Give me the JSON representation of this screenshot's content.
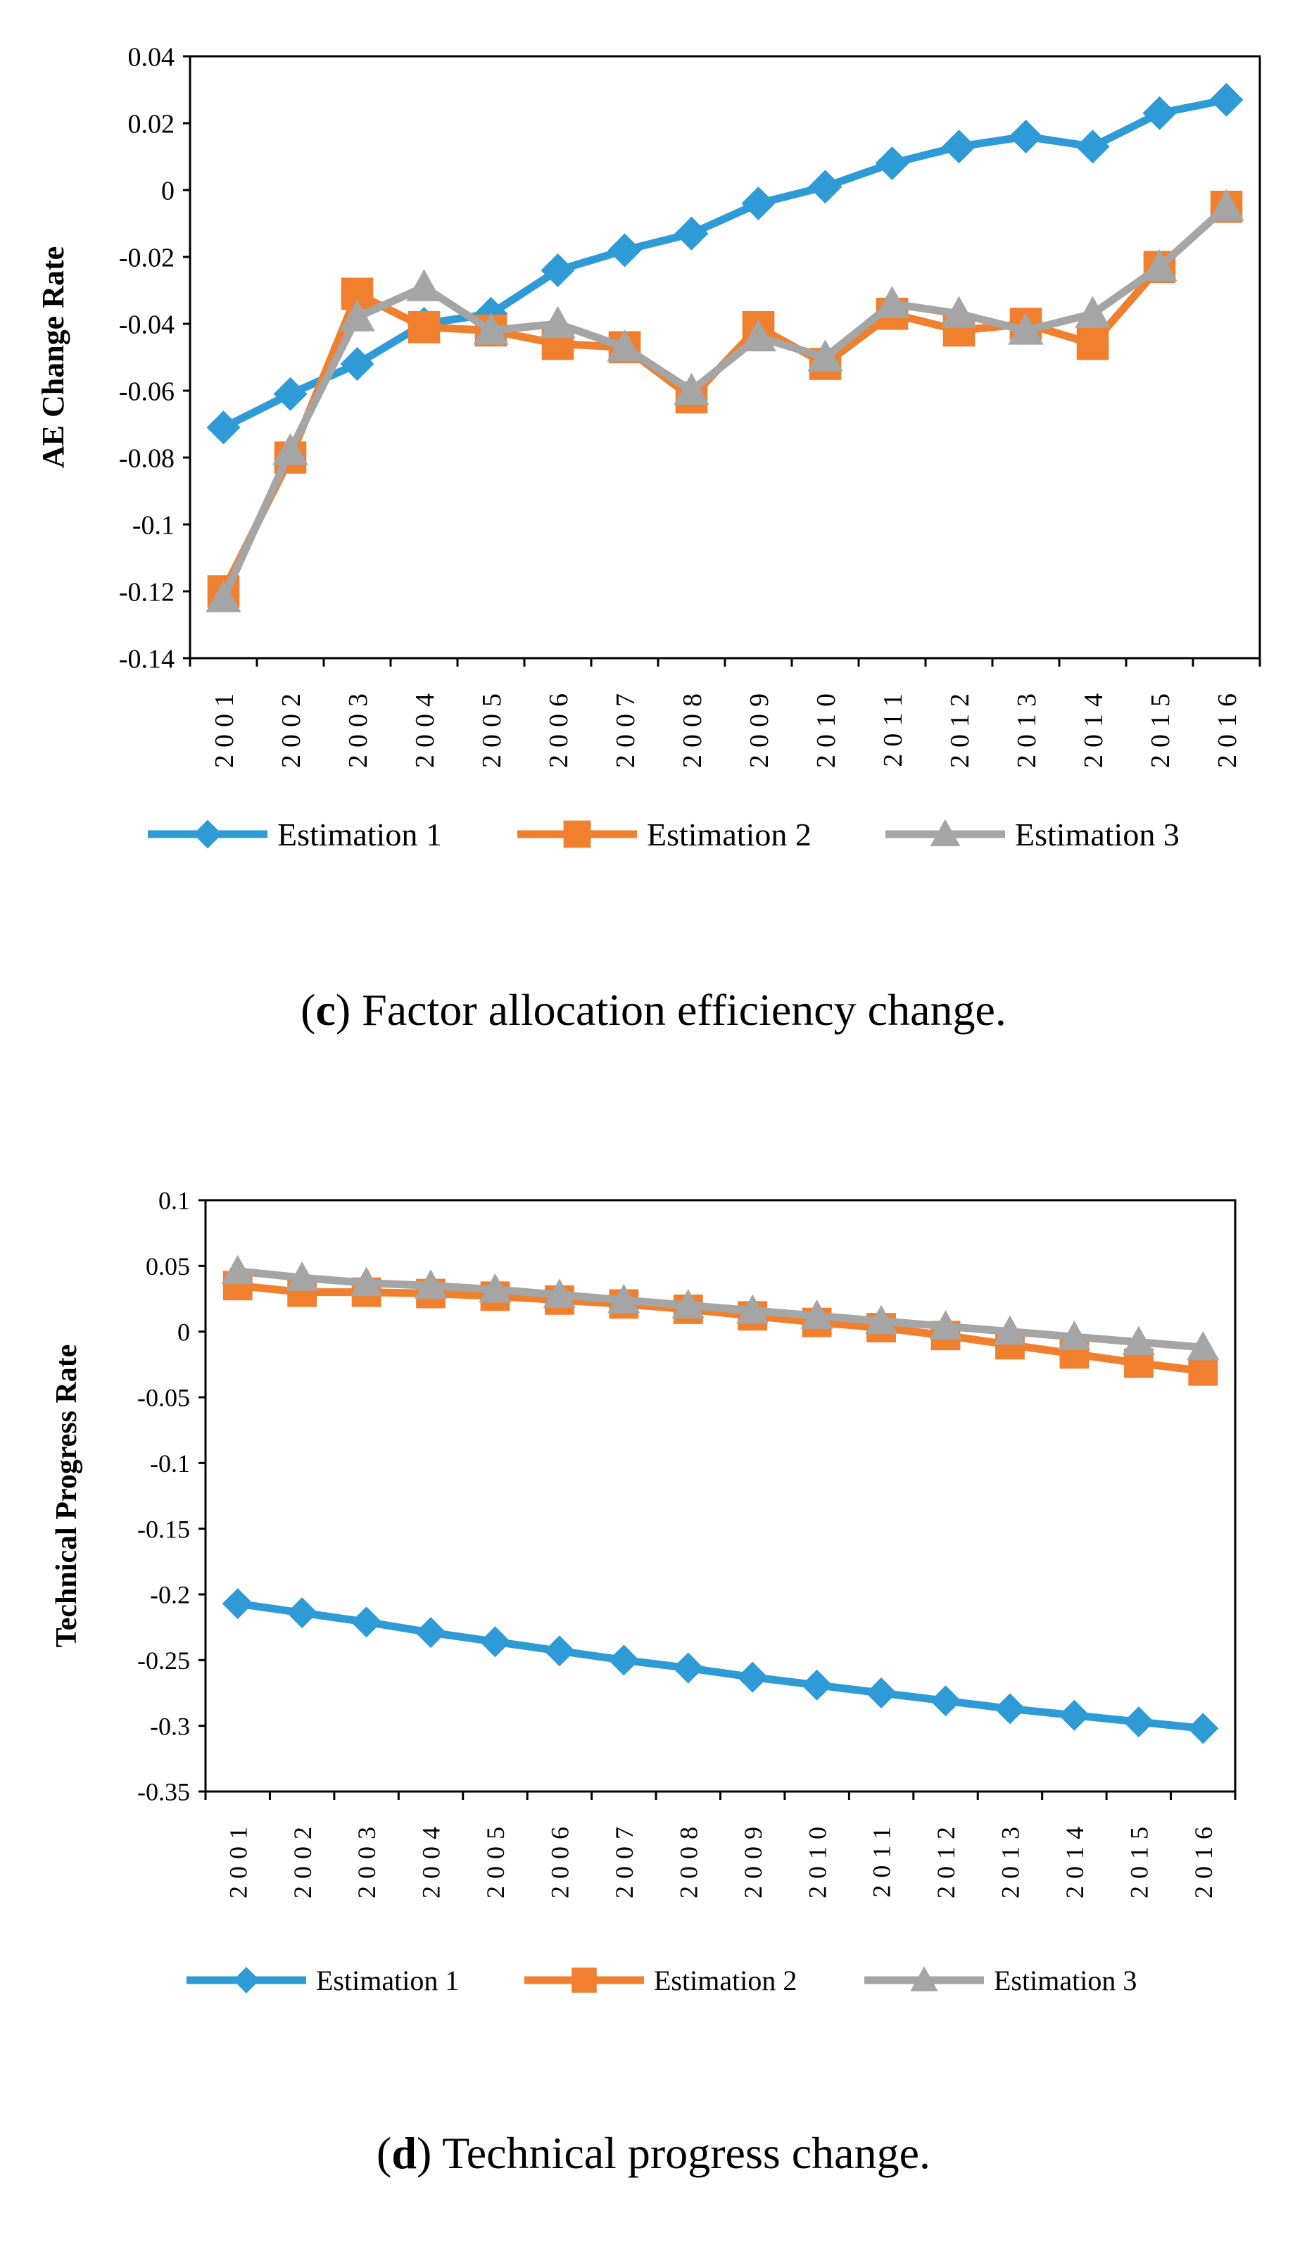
{
  "chart_data": [
    {
      "type": "line",
      "title": "",
      "xlabel": "",
      "ylabel": "AE Change Rate",
      "ylim": [
        -0.14,
        0.04
      ],
      "ytick_step": 0.02,
      "yticks": [
        "0.04",
        "0.02",
        "0",
        "-0.02",
        "-0.04",
        "-0.06",
        "-0.08",
        "-0.1",
        "-0.12",
        "-0.14"
      ],
      "categories": [
        "2001",
        "2002",
        "2003",
        "2004",
        "2005",
        "2006",
        "2007",
        "2008",
        "2009",
        "2010",
        "2011",
        "2012",
        "2013",
        "2014",
        "2015",
        "2016"
      ],
      "series": [
        {
          "name": "Estimation 1",
          "color": "#2E9BD6",
          "marker": "diamond",
          "values": [
            -0.071,
            -0.061,
            -0.052,
            -0.04,
            -0.037,
            -0.024,
            -0.018,
            -0.013,
            -0.004,
            0.001,
            0.008,
            0.013,
            0.016,
            0.013,
            0.023,
            0.027
          ]
        },
        {
          "name": "Estimation 2",
          "color": "#F07F2E",
          "marker": "square",
          "values": [
            -0.12,
            -0.08,
            -0.031,
            -0.041,
            -0.042,
            -0.046,
            -0.047,
            -0.062,
            -0.041,
            -0.052,
            -0.037,
            -0.042,
            -0.04,
            -0.046,
            -0.023,
            -0.005
          ]
        },
        {
          "name": "Estimation 3",
          "color": "#A5A5A5",
          "marker": "triangle",
          "values": [
            -0.122,
            -0.078,
            -0.038,
            -0.029,
            -0.042,
            -0.04,
            -0.047,
            -0.06,
            -0.044,
            -0.05,
            -0.034,
            -0.037,
            -0.042,
            -0.037,
            -0.023,
            -0.005
          ]
        }
      ],
      "legend": "bottom",
      "grid": false
    },
    {
      "type": "line",
      "title": "",
      "xlabel": "",
      "ylabel": "Technical Progress Rate",
      "ylim": [
        -0.35,
        0.1
      ],
      "ytick_step": 0.05,
      "yticks": [
        "0.1",
        "0.05",
        "0",
        "-0.05",
        "-0.1",
        "-0.15",
        "-0.2",
        "-0.25",
        "-0.3",
        "-0.35"
      ],
      "categories": [
        "2001",
        "2002",
        "2003",
        "2004",
        "2005",
        "2006",
        "2007",
        "2008",
        "2009",
        "2010",
        "2011",
        "2012",
        "2013",
        "2014",
        "2015",
        "2016"
      ],
      "series": [
        {
          "name": "Estimation 1",
          "color": "#2E9BD6",
          "marker": "diamond",
          "values": [
            -0.207,
            -0.214,
            -0.221,
            -0.229,
            -0.236,
            -0.243,
            -0.25,
            -0.256,
            -0.263,
            -0.269,
            -0.275,
            -0.281,
            -0.287,
            -0.292,
            -0.297,
            -0.302
          ]
        },
        {
          "name": "Estimation 2",
          "color": "#F07F2E",
          "marker": "square",
          "values": [
            0.035,
            0.03,
            0.03,
            0.029,
            0.027,
            0.024,
            0.021,
            0.017,
            0.012,
            0.007,
            0.003,
            -0.003,
            -0.01,
            -0.017,
            -0.024,
            -0.03
          ]
        },
        {
          "name": "Estimation 3",
          "color": "#A5A5A5",
          "marker": "triangle",
          "values": [
            0.046,
            0.041,
            0.037,
            0.035,
            0.032,
            0.028,
            0.024,
            0.02,
            0.016,
            0.012,
            0.008,
            0.004,
            0.0,
            -0.004,
            -0.008,
            -0.012
          ]
        }
      ],
      "legend": "bottom",
      "grid": false
    }
  ],
  "captions": {
    "c": {
      "label": "c",
      "text": " Factor allocation efficiency change."
    },
    "d": {
      "label": "d",
      "text": " Technical progress change."
    }
  }
}
